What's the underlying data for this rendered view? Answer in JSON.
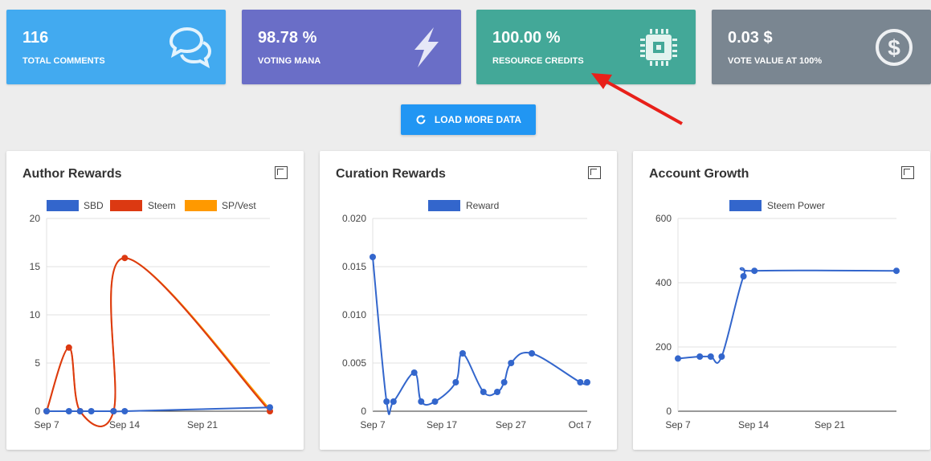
{
  "stats": [
    {
      "value": "116",
      "label": "TOTAL COMMENTS",
      "icon": "chat-bubbles-icon",
      "color": "#42aaf0"
    },
    {
      "value": "98.78 %",
      "label": "VOTING MANA",
      "icon": "lightning-bolt-icon",
      "color": "#6a6ec7"
    },
    {
      "value": "100.00 %",
      "label": "RESOURCE CREDITS",
      "icon": "cpu-chip-icon",
      "color": "#43a898"
    },
    {
      "value": "0.03 $",
      "label": "VOTE VALUE AT 100%",
      "icon": "dollar-coin-icon",
      "color": "#7a8691"
    }
  ],
  "load_button": {
    "label": "LOAD MORE DATA",
    "icon": "refresh-icon"
  },
  "charts": {
    "author": {
      "title": "Author Rewards"
    },
    "curation": {
      "title": "Curation Rewards"
    },
    "growth": {
      "title": "Account Growth"
    }
  },
  "chart_data": [
    {
      "type": "line",
      "title": "Author Rewards",
      "x_ticks": [
        "Sep 7",
        "Sep 14",
        "Sep 21"
      ],
      "y_ticks": [
        0,
        5,
        10,
        15,
        20
      ],
      "ylim": [
        0,
        20
      ],
      "legend": "top",
      "series": [
        {
          "name": "SBD",
          "color": "#3366cc",
          "points": [
            [
              0,
              0
            ],
            [
              2,
              0
            ],
            [
              3,
              0
            ],
            [
              4,
              0
            ],
            [
              6,
              0
            ],
            [
              7,
              0
            ],
            [
              20,
              0.4
            ]
          ]
        },
        {
          "name": "Steem",
          "color": "#dc3912",
          "points": [
            [
              0,
              0
            ],
            [
              2,
              6.6
            ],
            [
              3,
              0
            ],
            [
              6,
              0
            ],
            [
              7,
              15.9
            ],
            [
              20,
              0
            ]
          ]
        },
        {
          "name": "SP/Vest",
          "color": "#ff9900",
          "points": [
            [
              0,
              0
            ],
            [
              2,
              6.6
            ],
            [
              3,
              0
            ],
            [
              6,
              0
            ],
            [
              7,
              15.9
            ],
            [
              20,
              0.2
            ]
          ]
        }
      ]
    },
    {
      "type": "line",
      "title": "Curation Rewards",
      "x_ticks": [
        "Sep 7",
        "Sep 17",
        "Sep 27",
        "Oct 7"
      ],
      "y_ticks": [
        "0",
        "0.005",
        "0.010",
        "0.015",
        "0.020"
      ],
      "ylim": [
        0,
        0.02
      ],
      "legend": "top",
      "series": [
        {
          "name": "Reward",
          "color": "#3366cc",
          "points": [
            [
              0,
              0.016
            ],
            [
              2,
              0.001
            ],
            [
              3,
              0.001
            ],
            [
              6,
              0.004
            ],
            [
              7,
              0.001
            ],
            [
              9,
              0.001
            ],
            [
              12,
              0.003
            ],
            [
              13,
              0.006
            ],
            [
              16,
              0.002
            ],
            [
              18,
              0.002
            ],
            [
              19,
              0.003
            ],
            [
              20,
              0.005
            ],
            [
              23,
              0.006
            ],
            [
              30,
              0.003
            ],
            [
              31,
              0.003
            ]
          ]
        }
      ]
    },
    {
      "type": "line",
      "title": "Account Growth",
      "x_ticks": [
        "Sep 7",
        "Sep 14",
        "Sep 21"
      ],
      "y_ticks": [
        0,
        200,
        400,
        600
      ],
      "ylim": [
        0,
        600
      ],
      "legend": "top",
      "series": [
        {
          "name": "Steem Power",
          "color": "#3366cc",
          "points": [
            [
              0,
              164
            ],
            [
              2,
              170
            ],
            [
              3,
              170
            ],
            [
              4,
              170
            ],
            [
              6,
              420
            ],
            [
              7,
              437
            ],
            [
              20,
              437
            ]
          ]
        }
      ]
    }
  ]
}
